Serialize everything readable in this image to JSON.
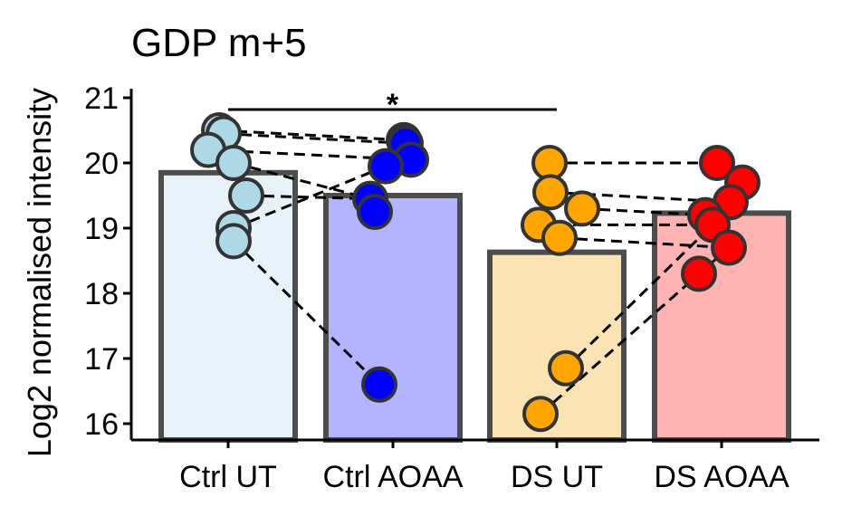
{
  "chart_data": {
    "type": "bar",
    "title": "GDP m+5",
    "xlabel": "",
    "ylabel": "Log2 normalised intensity",
    "ylim": [
      15.8,
      21.2
    ],
    "yticks": [
      16,
      17,
      18,
      19,
      20,
      21
    ],
    "categories": [
      "Ctrl UT",
      "Ctrl AOAA",
      "DS UT",
      "DS AOAA"
    ],
    "values": [
      19.85,
      19.5,
      18.63,
      19.23
    ],
    "bar_fill_colors": [
      "#e6f2f8",
      "#b3b3ff",
      "#fbe3b3",
      "#ffb3b3"
    ],
    "bar_edge_color": "#4d4d4d",
    "point_colors": [
      "#add8e6",
      "#0000ff",
      "#ffa500",
      "#ff0000"
    ],
    "points": [
      [
        20.5,
        20.45,
        20.2,
        20.0,
        19.5,
        19.0,
        18.8
      ],
      [
        20.35,
        20.3,
        20.05,
        19.95,
        19.45,
        19.25,
        16.6
      ],
      [
        20.0,
        19.55,
        19.3,
        19.05,
        18.85,
        16.85,
        16.15
      ],
      [
        20.0,
        19.7,
        19.4,
        19.2,
        19.05,
        18.7,
        18.3
      ]
    ],
    "paired_lines": [
      {
        "from": {
          "group": 0,
          "y": 20.5
        },
        "to": {
          "group": 1,
          "y": 20.35
        }
      },
      {
        "from": {
          "group": 0,
          "y": 20.45
        },
        "to": {
          "group": 1,
          "y": 20.3
        }
      },
      {
        "from": {
          "group": 0,
          "y": 20.2
        },
        "to": {
          "group": 1,
          "y": 20.05
        }
      },
      {
        "from": {
          "group": 0,
          "y": 20.0
        },
        "to": {
          "group": 1,
          "y": 19.45
        }
      },
      {
        "from": {
          "group": 0,
          "y": 19.5
        },
        "to": {
          "group": 1,
          "y": 19.45
        }
      },
      {
        "from": {
          "group": 0,
          "y": 19.0
        },
        "to": {
          "group": 1,
          "y": 19.95
        }
      },
      {
        "from": {
          "group": 0,
          "y": 18.8
        },
        "to": {
          "group": 1,
          "y": 16.6
        }
      },
      {
        "from": {
          "group": 2,
          "y": 20.0
        },
        "to": {
          "group": 3,
          "y": 20.0
        }
      },
      {
        "from": {
          "group": 2,
          "y": 19.55
        },
        "to": {
          "group": 3,
          "y": 19.4
        }
      },
      {
        "from": {
          "group": 2,
          "y": 19.3
        },
        "to": {
          "group": 3,
          "y": 19.2
        }
      },
      {
        "from": {
          "group": 2,
          "y": 19.05
        },
        "to": {
          "group": 3,
          "y": 19.05
        }
      },
      {
        "from": {
          "group": 2,
          "y": 18.85
        },
        "to": {
          "group": 3,
          "y": 18.7
        }
      },
      {
        "from": {
          "group": 2,
          "y": 16.85
        },
        "to": {
          "group": 3,
          "y": 19.05
        }
      },
      {
        "from": {
          "group": 2,
          "y": 16.15
        },
        "to": {
          "group": 3,
          "y": 18.7
        }
      }
    ],
    "significance": {
      "from_group": 0,
      "to_group": 2,
      "y": 20.82,
      "label": "*"
    },
    "legend": "none",
    "grid": false
  }
}
